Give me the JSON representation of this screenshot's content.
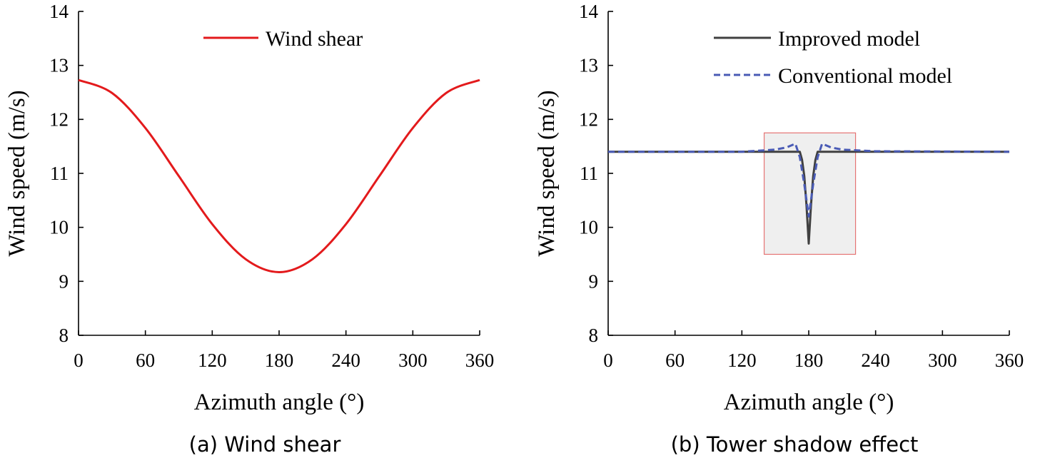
{
  "chart_data": [
    {
      "type": "line",
      "caption": "(a) Wind shear",
      "xlabel": "Azimuth angle (°)",
      "ylabel": "Wind speed (m/s)",
      "xlim": [
        0,
        360
      ],
      "ylim": [
        8,
        14
      ],
      "xticks": [
        0,
        60,
        120,
        180,
        240,
        300,
        360
      ],
      "yticks": [
        8,
        9,
        10,
        11,
        12,
        13,
        14
      ],
      "legend_position": "top-center",
      "series": [
        {
          "name": "Wind shear",
          "color": "#e31a1c",
          "style": "solid",
          "x": [
            0,
            30,
            60,
            90,
            120,
            150,
            180,
            210,
            240,
            270,
            300,
            330,
            360
          ],
          "y": [
            12.73,
            12.49,
            11.84,
            10.95,
            10.06,
            9.41,
            9.17,
            9.41,
            10.06,
            10.95,
            11.84,
            12.49,
            12.73
          ]
        }
      ]
    },
    {
      "type": "line",
      "caption": "(b) Tower shadow effect",
      "xlabel": "Azimuth angle (°)",
      "ylabel": "Wind speed (m/s)",
      "xlim": [
        0,
        360
      ],
      "ylim": [
        8,
        14
      ],
      "xticks": [
        0,
        60,
        120,
        180,
        240,
        300,
        360
      ],
      "yticks": [
        8,
        9,
        10,
        11,
        12,
        13,
        14
      ],
      "legend_position": "top-center",
      "highlight_box": {
        "x": [
          140,
          222
        ],
        "y": [
          9.5,
          11.75
        ],
        "fill": "#efefef",
        "stroke": "#e57373"
      },
      "series": [
        {
          "name": "Improved model",
          "color": "#404040",
          "style": "solid",
          "x": [
            0,
            172,
            174,
            176,
            178,
            180,
            182,
            184,
            186,
            188,
            360
          ],
          "y": [
            11.4,
            11.4,
            11.25,
            10.95,
            10.4,
            9.7,
            10.4,
            10.95,
            11.25,
            11.4,
            11.4
          ]
        },
        {
          "name": "Conventional model",
          "color": "#4a5bb5",
          "style": "dashed",
          "x": [
            0,
            120,
            150,
            160,
            168,
            172,
            176,
            180,
            184,
            188,
            192,
            200,
            210,
            240,
            360
          ],
          "y": [
            11.4,
            11.4,
            11.44,
            11.48,
            11.55,
            11.3,
            10.8,
            10.2,
            10.8,
            11.3,
            11.55,
            11.48,
            11.44,
            11.41,
            11.4
          ]
        }
      ]
    }
  ]
}
